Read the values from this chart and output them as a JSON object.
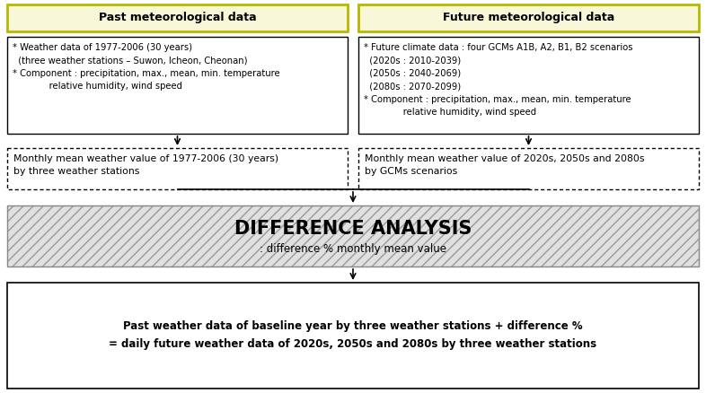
{
  "title_left": "Past meteorological data",
  "title_right": "Future meteorological data",
  "box1_text": "* Weather data of 1977-2006 (30 years)\n  (three weather stations – Suwon, Icheon, Cheonan)\n* Component : precipitation, max., mean, min. temperature\n             relative humidity, wind speed",
  "box2_text": "* Future climate data : four GCMs A1B, A2, B1, B2 scenarios\n  (2020s : 2010-2039)\n  (2050s : 2040-2069)\n  (2080s : 2070-2099)\n* Component : precipitation, max., mean, min. temperature\n              relative humidity, wind speed",
  "box3_text": "Monthly mean weather value of 1977-2006 (30 years)\nby three weather stations",
  "box4_text": "Monthly mean weather value of 2020s, 2050s and 2080s\nby GCMs scenarios",
  "diff_title": "DIFFERENCE ANALYSIS",
  "diff_subtitle": ": difference % monthly mean value",
  "bottom_line1": "Past weather data of baseline year by three weather stations + difference %",
  "bottom_line2": "= daily future weather data of 2020s, 2050s and 2080s by three weather stations",
  "header_bg": "#f8f8d8",
  "header_border": "#b8b800",
  "diff_bg": "#e0e0e0",
  "text_color": "#000000",
  "fig_w": 7.86,
  "fig_h": 4.38,
  "dpi": 100
}
